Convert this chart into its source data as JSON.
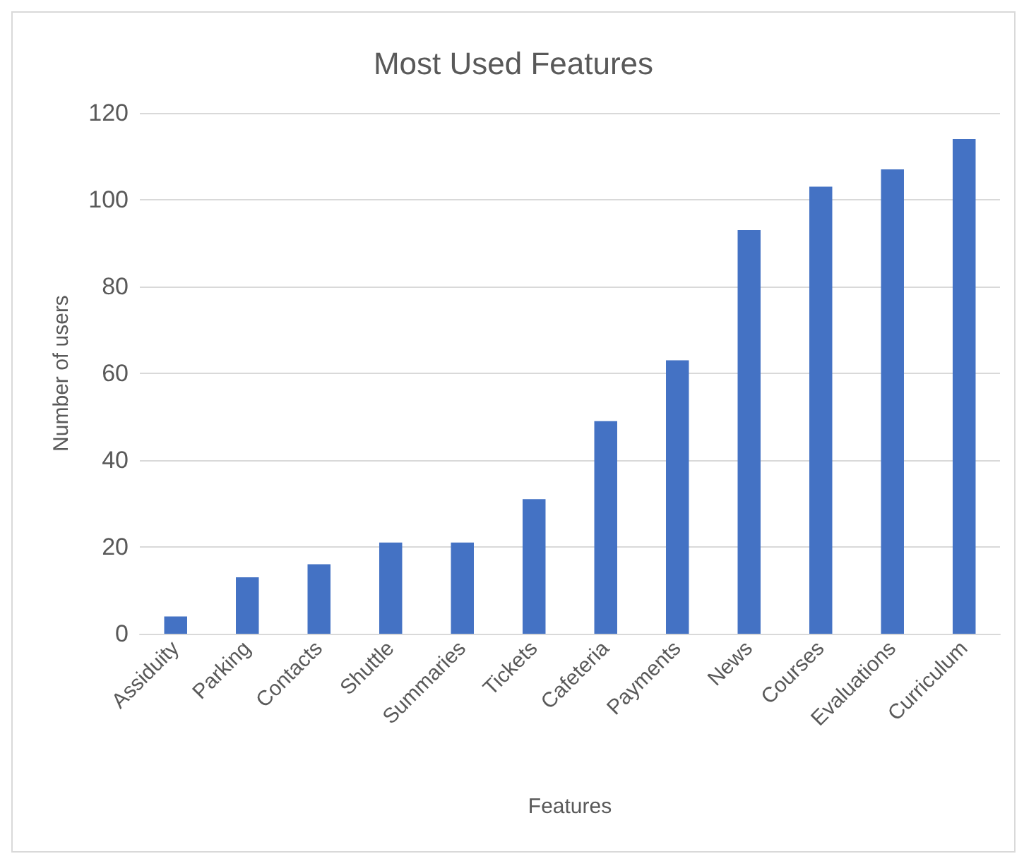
{
  "chart_data": {
    "type": "bar",
    "title": "Most Used Features",
    "xlabel": "Features",
    "ylabel": "Number of users",
    "categories": [
      "Assiduity",
      "Parking",
      "Contacts",
      "Shuttle",
      "Summaries",
      "Tickets",
      "Cafeteria",
      "Payments",
      "News",
      "Courses",
      "Evaluations",
      "Curriculum"
    ],
    "values": [
      4,
      13,
      16,
      21,
      21,
      31,
      49,
      63,
      93,
      103,
      107,
      114
    ],
    "color": "#4472c4",
    "ylim": [
      0,
      120
    ],
    "yticks": [
      0,
      20,
      40,
      60,
      80,
      100,
      120
    ],
    "grid": "y"
  }
}
